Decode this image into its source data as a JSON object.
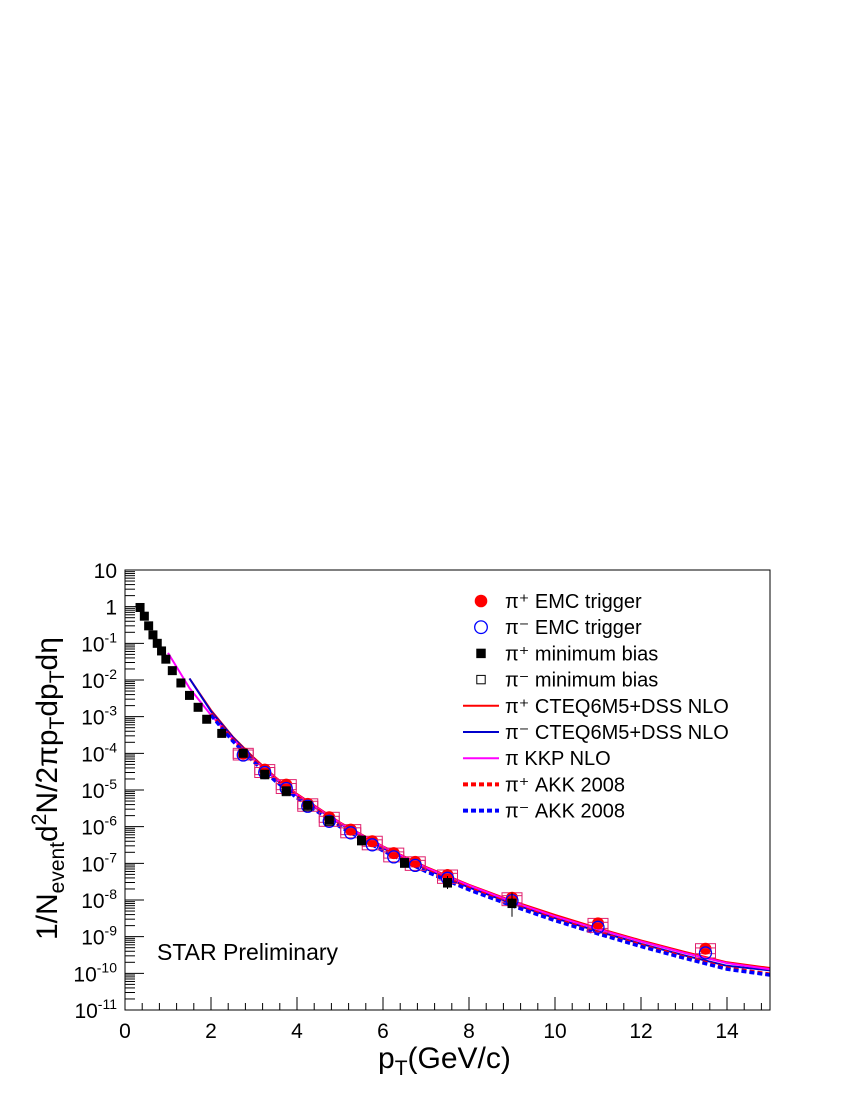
{
  "chart_data": {
    "type": "scatter",
    "title": "",
    "xlabel": "p_T(GeV/c)",
    "ylabel": "1/N_event d²N/2πp_T dp_T dη",
    "xlim": [
      0,
      15
    ],
    "ylim": [
      1e-11,
      10
    ],
    "y_scale": "log",
    "grid": false,
    "legend_placement": "top-right",
    "annotation": "STAR Preliminary",
    "x_ticks": [
      0,
      2,
      4,
      6,
      8,
      10,
      12,
      14
    ],
    "y_ticks": [
      1e-11,
      1e-10,
      1e-09,
      1e-08,
      1e-07,
      1e-06,
      1e-05,
      0.0001,
      0.001,
      0.01,
      0.1,
      1,
      10
    ],
    "series": [
      {
        "name": "π⁺ EMC trigger",
        "kind": "marker",
        "marker": "filled-circle",
        "color": "#ff0000",
        "x": [
          2.75,
          3.25,
          3.75,
          4.25,
          4.75,
          5.25,
          5.75,
          6.25,
          6.75,
          7.5,
          9.0,
          11.0,
          13.5
        ],
        "y": [
          0.0001,
          3.6e-05,
          1.4e-05,
          4.2e-06,
          1.8e-06,
          8.3e-07,
          4e-07,
          1.9e-07,
          1.1e-07,
          4.8e-08,
          1.15e-08,
          2.3e-09,
          4.7e-10
        ]
      },
      {
        "name": "π⁻ EMC trigger",
        "kind": "marker",
        "marker": "open-circle",
        "color": "#0000ff",
        "x": [
          2.75,
          3.25,
          3.75,
          4.25,
          4.75,
          5.25,
          5.75,
          6.25,
          6.75,
          7.5,
          9.0,
          11.0,
          13.5
        ],
        "y": [
          9e-05,
          3e-05,
          1.1e-05,
          3.6e-06,
          1.4e-06,
          6.8e-07,
          3.2e-07,
          1.5e-07,
          8.8e-08,
          3.9e-08,
          9.6e-09,
          1.8e-09,
          3.6e-10
        ]
      },
      {
        "name": "π⁺ minimum bias",
        "kind": "marker",
        "marker": "filled-square",
        "color": "#000000",
        "x": [
          0.35,
          0.45,
          0.55,
          0.65,
          0.75,
          0.85,
          0.95,
          1.1,
          1.3,
          1.5,
          1.7,
          1.9,
          2.25,
          2.75,
          3.25,
          3.75,
          4.25,
          4.75,
          5.5,
          6.5,
          7.5,
          9.0
        ],
        "y": [
          0.95,
          0.55,
          0.3,
          0.17,
          0.1,
          0.062,
          0.037,
          0.018,
          0.0083,
          0.0038,
          0.0018,
          0.00085,
          0.00035,
          0.0001,
          2.7e-05,
          9.5e-06,
          3.8e-06,
          1.5e-06,
          4.3e-07,
          1.05e-07,
          3e-08,
          8.2e-09
        ]
      },
      {
        "name": "π⁻ minimum bias",
        "kind": "marker",
        "marker": "open-square",
        "color": "#000000",
        "x": [
          3.25,
          3.75,
          4.25,
          4.75,
          5.5,
          6.5,
          7.5,
          9.0
        ],
        "y": [
          2.6e-05,
          9e-06,
          3.5e-06,
          1.4e-06,
          4.1e-07,
          1e-07,
          2.9e-08,
          8e-09
        ]
      },
      {
        "name": "π⁺ CTEQ6M5+DSS NLO",
        "kind": "line",
        "style": "solid",
        "color": "#ff0000",
        "x": [
          1.5,
          2.0,
          2.5,
          3.0,
          3.5,
          4.0,
          5.0,
          6.0,
          7.0,
          8.0,
          9.0,
          10.0,
          11.0,
          12.0,
          13.0,
          14.0,
          15.0
        ],
        "y": [
          0.011,
          0.0015,
          0.00029,
          7.5e-05,
          2.2e-05,
          7.8e-06,
          1.3e-06,
          2.9e-07,
          8e-08,
          2.6e-08,
          9.5e-09,
          3.9e-09,
          1.7e-09,
          7.9e-10,
          3.9e-10,
          2e-10,
          1.4e-10
        ]
      },
      {
        "name": "π⁻ CTEQ6M5+DSS NLO",
        "kind": "line",
        "style": "solid",
        "color": "#0000cc",
        "x": [
          1.5,
          2.0,
          2.5,
          3.0,
          3.5,
          4.0,
          5.0,
          6.0,
          7.0,
          8.0,
          9.0,
          10.0,
          11.0,
          12.0,
          13.0,
          14.0,
          15.0
        ],
        "y": [
          0.011,
          0.0014,
          0.00028,
          7e-05,
          2e-05,
          7.1e-06,
          1.2e-06,
          2.6e-07,
          7e-08,
          2.2e-08,
          8e-09,
          3.2e-09,
          1.4e-09,
          6.4e-10,
          3.1e-10,
          1.6e-10,
          1.2e-10
        ]
      },
      {
        "name": "π KKP NLO",
        "kind": "line",
        "style": "solid",
        "color": "#ff00ff",
        "x": [
          1.0,
          1.5,
          2.0,
          2.5,
          3.0,
          3.5,
          4.0,
          5.0,
          6.0,
          7.0,
          8.0,
          9.0,
          10.0,
          11.0,
          12.0,
          13.0,
          14.0,
          15.0
        ],
        "y": [
          0.055,
          0.006,
          0.0011,
          0.00025,
          6.8e-05,
          2.1e-05,
          7.4e-06,
          1.25e-06,
          2.8e-07,
          7.6e-08,
          2.5e-08,
          9e-09,
          3.6e-09,
          1.6e-09,
          7.4e-10,
          3.6e-10,
          1.9e-10,
          1.3e-10
        ]
      },
      {
        "name": "π⁺ AKK 2008",
        "kind": "line",
        "style": "dashed",
        "color": "#ff0000",
        "x": [
          2.0,
          2.5,
          3.0,
          3.5,
          4.0,
          5.0,
          6.0,
          7.0,
          8.0,
          9.0,
          10.0,
          11.0,
          12.0,
          13.0,
          14.0,
          15.0
        ],
        "y": [
          0.0012,
          0.00024,
          6.3e-05,
          1.9e-05,
          6.6e-06,
          1.1e-06,
          2.4e-07,
          6.5e-08,
          2.1e-08,
          7.6e-09,
          3e-09,
          1.3e-09,
          5.9e-10,
          2.8e-10,
          1.4e-10,
          9.5e-11
        ]
      },
      {
        "name": "π⁻ AKK 2008",
        "kind": "line",
        "style": "dashed",
        "color": "#0000ff",
        "x": [
          2.0,
          2.5,
          3.0,
          3.5,
          4.0,
          5.0,
          6.0,
          7.0,
          8.0,
          9.0,
          10.0,
          11.0,
          12.0,
          13.0,
          14.0,
          15.0
        ],
        "y": [
          0.0011,
          0.00022,
          5.8e-05,
          1.75e-05,
          6.1e-06,
          1e-06,
          2.2e-07,
          6e-08,
          1.9e-08,
          7e-09,
          2.75e-09,
          1.2e-09,
          5.4e-10,
          2.6e-10,
          1.3e-10,
          9e-11
        ]
      }
    ]
  }
}
